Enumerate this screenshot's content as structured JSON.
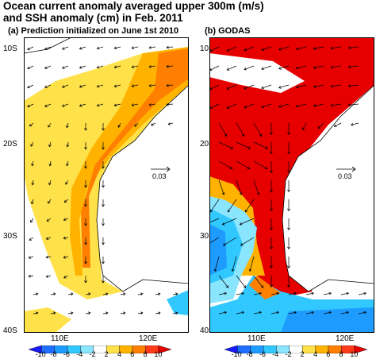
{
  "title": {
    "line1": "Ocean current anomaly averaged upper 300m (m/s)",
    "line2": "and SSH anomaly (cm) in Feb. 2011"
  },
  "panels": [
    {
      "label": "(a) Prediction initialized on June 1st 2010",
      "ref_vector_label": "0.03"
    },
    {
      "label": "(b) GODAS",
      "ref_vector_label": "0.03"
    }
  ],
  "axes": {
    "lat_ticks": [
      "10S",
      "20S",
      "30S",
      "40S"
    ],
    "lon_ticks": [
      "110E",
      "120E"
    ]
  },
  "colorbar": {
    "ticks": [
      "-10",
      "-8",
      "-6",
      "-4",
      "-2",
      "2",
      "4",
      "6",
      "8",
      "10"
    ],
    "colors": [
      "#1a1aff",
      "#1e6eff",
      "#1e9bff",
      "#30c8ff",
      "#8ae5ff",
      "#ffffff",
      "#ffe14a",
      "#ffb300",
      "#ff7f00",
      "#ff3b1a",
      "#e60000"
    ]
  },
  "map_colors": {
    "land": "#ffffff",
    "coast": "#000000",
    "vector": "#000000"
  }
}
